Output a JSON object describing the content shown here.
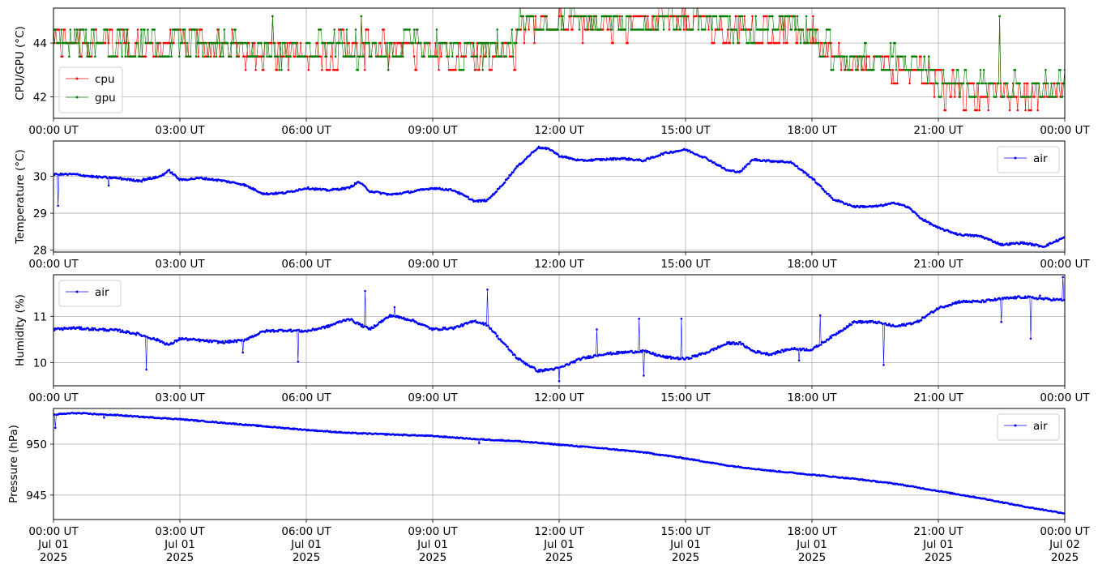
{
  "chart_data": [
    {
      "type": "line",
      "ylabel": "CPU/GPU (°C)",
      "ylim": [
        41.2,
        45.3
      ],
      "yticks": [
        42,
        44
      ],
      "xlim": [
        "2025-07-01 00:00",
        "2025-07-02 00:00"
      ],
      "xtick_labels": [
        "00:00 UT",
        "03:00 UT",
        "06:00 UT",
        "09:00 UT",
        "12:00 UT",
        "15:00 UT",
        "18:00 UT",
        "21:00 UT",
        "00:00 UT"
      ],
      "grid": true,
      "legend_position": "lower-left",
      "series": [
        {
          "name": "cpu",
          "color": "#ff0000",
          "level_hours": [
            0,
            1,
            2,
            3,
            4,
            5,
            6,
            7,
            8,
            9,
            10,
            10.95,
            11,
            12,
            13,
            14,
            15,
            16,
            17,
            18,
            18.5,
            19,
            20,
            20.8,
            21,
            22,
            23,
            24
          ],
          "level_values": [
            44.1,
            44.0,
            43.9,
            44.0,
            43.9,
            43.6,
            43.7,
            43.8,
            43.7,
            43.7,
            43.6,
            43.7,
            44.7,
            44.8,
            44.6,
            44.7,
            44.9,
            44.5,
            44.6,
            44.4,
            43.5,
            43.3,
            43.2,
            43.0,
            42.3,
            42.1,
            42.1,
            42.2
          ],
          "spread": 0.55
        },
        {
          "name": "gpu",
          "color": "#008000",
          "level_hours": [
            0,
            1,
            2,
            3,
            4,
            5,
            6,
            7,
            8,
            9,
            10,
            10.95,
            11,
            12,
            13,
            14,
            15,
            16,
            17,
            18,
            18.5,
            19,
            20,
            20.8,
            21,
            22,
            23,
            24
          ],
          "level_values": [
            44.1,
            44.0,
            44.0,
            44.1,
            44.0,
            43.7,
            43.8,
            43.8,
            43.7,
            43.8,
            43.7,
            43.8,
            44.8,
            44.9,
            44.7,
            44.8,
            44.9,
            44.6,
            44.7,
            44.5,
            43.5,
            43.3,
            43.3,
            43.1,
            42.5,
            42.3,
            42.3,
            42.4
          ],
          "spread": 0.55
        }
      ]
    },
    {
      "type": "line",
      "ylabel": "Temperature (°C)",
      "ylim": [
        27.95,
        30.95
      ],
      "yticks": [
        28,
        29,
        30
      ],
      "xlim": [
        "2025-07-01 00:00",
        "2025-07-02 00:00"
      ],
      "xtick_labels": [
        "00:00 UT",
        "03:00 UT",
        "06:00 UT",
        "09:00 UT",
        "12:00 UT",
        "15:00 UT",
        "18:00 UT",
        "21:00 UT",
        "00:00 UT"
      ],
      "grid": true,
      "legend_position": "upper-right",
      "series": [
        {
          "name": "air",
          "color": "#0000ff",
          "x_hours": [
            0,
            0.5,
            1,
            1.5,
            2,
            2.5,
            2.75,
            3,
            3.5,
            4,
            4.5,
            5,
            5.5,
            6,
            6.5,
            7,
            7.25,
            7.5,
            8,
            8.5,
            9,
            9.5,
            10,
            10.3,
            10.6,
            11,
            11.5,
            11.8,
            12,
            12.5,
            13,
            13.5,
            14,
            14.5,
            15,
            15.5,
            16,
            16.3,
            16.6,
            16.9,
            17.2,
            17.5,
            18,
            18.5,
            19,
            19.5,
            20,
            20.3,
            20.6,
            21,
            21.5,
            22,
            22.5,
            23,
            23.5,
            24
          ],
          "values": [
            30.05,
            30.05,
            29.98,
            29.95,
            29.88,
            29.98,
            30.15,
            29.9,
            29.95,
            29.88,
            29.78,
            29.52,
            29.55,
            29.68,
            29.62,
            29.68,
            29.85,
            29.6,
            29.5,
            29.58,
            29.68,
            29.62,
            29.32,
            29.35,
            29.7,
            30.25,
            30.78,
            30.72,
            30.55,
            30.42,
            30.45,
            30.48,
            30.42,
            30.62,
            30.72,
            30.48,
            30.15,
            30.12,
            30.45,
            30.42,
            30.4,
            30.38,
            29.95,
            29.38,
            29.18,
            29.18,
            29.28,
            29.15,
            28.85,
            28.6,
            28.42,
            28.38,
            28.15,
            28.2,
            28.1,
            28.35
          ],
          "noise": 0.025,
          "outliers": [
            [
              0.1,
              29.2
            ],
            [
              1.3,
              29.75
            ],
            [
              2.1,
              29.85
            ]
          ]
        }
      ]
    },
    {
      "type": "line",
      "ylabel": "Humidity (%)",
      "ylim": [
        9.5,
        11.9
      ],
      "yticks": [
        10,
        11
      ],
      "xlim": [
        "2025-07-01 00:00",
        "2025-07-02 00:00"
      ],
      "xtick_labels": [
        "00:00 UT",
        "03:00 UT",
        "06:00 UT",
        "09:00 UT",
        "12:00 UT",
        "15:00 UT",
        "18:00 UT",
        "21:00 UT",
        "00:00 UT"
      ],
      "grid": true,
      "legend_position": "upper-left",
      "series": [
        {
          "name": "air",
          "color": "#0000ff",
          "x_hours": [
            0,
            0.5,
            1,
            1.5,
            2,
            2.5,
            2.75,
            3,
            3.5,
            4,
            4.5,
            5,
            5.5,
            6,
            6.5,
            7,
            7.5,
            8,
            8.5,
            9,
            9.5,
            10,
            10.3,
            10.6,
            11,
            11.5,
            12,
            12.5,
            13,
            13.5,
            14,
            14.5,
            15,
            15.5,
            16,
            16.3,
            16.6,
            17,
            17.5,
            18,
            18.5,
            19,
            19.5,
            20,
            20.5,
            21,
            21.5,
            22,
            22.5,
            23,
            23.5,
            24
          ],
          "values": [
            10.72,
            10.75,
            10.72,
            10.7,
            10.62,
            10.48,
            10.38,
            10.52,
            10.48,
            10.44,
            10.48,
            10.68,
            10.7,
            10.68,
            10.78,
            10.95,
            10.72,
            11.02,
            10.92,
            10.72,
            10.75,
            10.9,
            10.82,
            10.5,
            10.1,
            9.82,
            9.88,
            10.08,
            10.18,
            10.22,
            10.25,
            10.12,
            10.08,
            10.22,
            10.42,
            10.42,
            10.25,
            10.18,
            10.3,
            10.28,
            10.58,
            10.88,
            10.88,
            10.78,
            10.88,
            11.18,
            11.32,
            11.32,
            11.38,
            11.42,
            11.38,
            11.35
          ],
          "noise": 0.025,
          "outliers": [
            [
              2.2,
              9.85
            ],
            [
              4.5,
              10.22
            ],
            [
              5.8,
              10.02
            ],
            [
              7.4,
              11.55
            ],
            [
              8.1,
              11.2
            ],
            [
              10.3,
              11.58
            ],
            [
              12.0,
              9.6
            ],
            [
              12.9,
              10.72
            ],
            [
              13.9,
              10.95
            ],
            [
              14.0,
              9.72
            ],
            [
              14.9,
              10.95
            ],
            [
              17.7,
              10.05
            ],
            [
              18.2,
              11.02
            ],
            [
              19.7,
              9.95
            ],
            [
              22.5,
              10.88
            ],
            [
              23.2,
              10.52
            ],
            [
              23.4,
              11.45
            ],
            [
              23.95,
              11.85
            ]
          ]
        }
      ]
    },
    {
      "type": "line",
      "ylabel": "Pressure (hPa)",
      "ylim": [
        942.6,
        953.5
      ],
      "yticks": [
        945,
        950
      ],
      "xlim": [
        "2025-07-01 00:00",
        "2025-07-02 00:00"
      ],
      "xtick_labels": [
        "00:00 UT\nJul 01\n2025",
        "03:00 UT\nJul 01\n2025",
        "06:00 UT\nJul 01\n2025",
        "09:00 UT\nJul 01\n2025",
        "12:00 UT\nJul 01\n2025",
        "15:00 UT\nJul 01\n2025",
        "18:00 UT\nJul 01\n2025",
        "21:00 UT\nJul 01\n2025",
        "00:00 UT\nJul 02\n2025"
      ],
      "grid": true,
      "legend_position": "upper-right",
      "series": [
        {
          "name": "air",
          "color": "#0000ff",
          "x_hours": [
            0,
            0.5,
            1,
            1.5,
            2,
            3,
            4,
            5,
            6,
            7,
            8,
            9,
            10,
            11,
            12,
            13,
            14,
            15,
            16,
            17,
            18,
            19,
            20,
            21,
            22,
            23,
            24
          ],
          "values": [
            952.9,
            953.05,
            952.95,
            952.85,
            952.7,
            952.45,
            952.1,
            951.75,
            951.4,
            951.1,
            950.95,
            950.8,
            950.5,
            950.3,
            949.95,
            949.6,
            949.2,
            948.6,
            947.9,
            947.4,
            947.0,
            946.6,
            946.1,
            945.4,
            944.7,
            943.9,
            943.2
          ],
          "noise": 0.05,
          "outliers": [
            [
              0.05,
              951.6
            ],
            [
              1.2,
              952.6
            ],
            [
              10.1,
              950.1
            ]
          ]
        }
      ]
    }
  ]
}
